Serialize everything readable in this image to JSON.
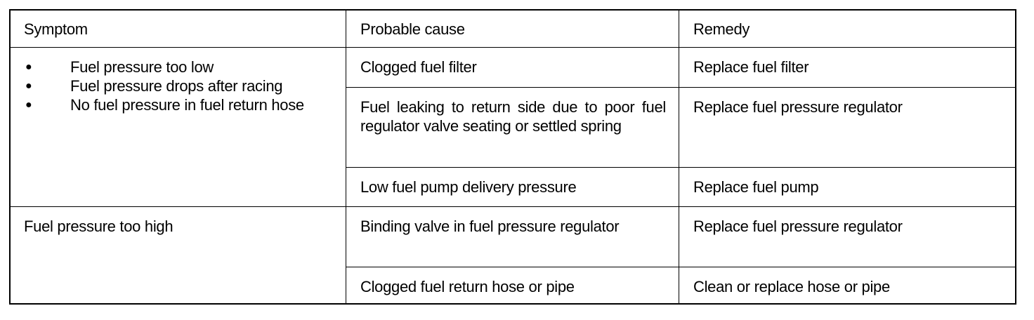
{
  "headers": {
    "symptom": "Symptom",
    "cause": "Probable cause",
    "remedy": "Remedy"
  },
  "rows": [
    {
      "symptoms": [
        "Fuel pressure too low",
        "Fuel pressure drops after racing",
        "No fuel pressure in fuel return hose"
      ],
      "causes": [
        {
          "cause": "Clogged fuel filter",
          "remedy": "Replace fuel filter"
        },
        {
          "cause": "Fuel leaking to return side due to poor fuel regulator valve seating or settled spring",
          "remedy": "Replace fuel pressure regulator"
        },
        {
          "cause": "Low fuel pump delivery pressure",
          "remedy": "Replace fuel pump"
        }
      ]
    },
    {
      "symptom": "Fuel pressure too high",
      "causes": [
        {
          "cause": "Binding valve in fuel pressure regulator",
          "remedy": "Replace fuel pressure regulator"
        },
        {
          "cause": "Clogged fuel return hose or pipe",
          "remedy": "Clean or replace hose or pipe"
        }
      ]
    }
  ]
}
